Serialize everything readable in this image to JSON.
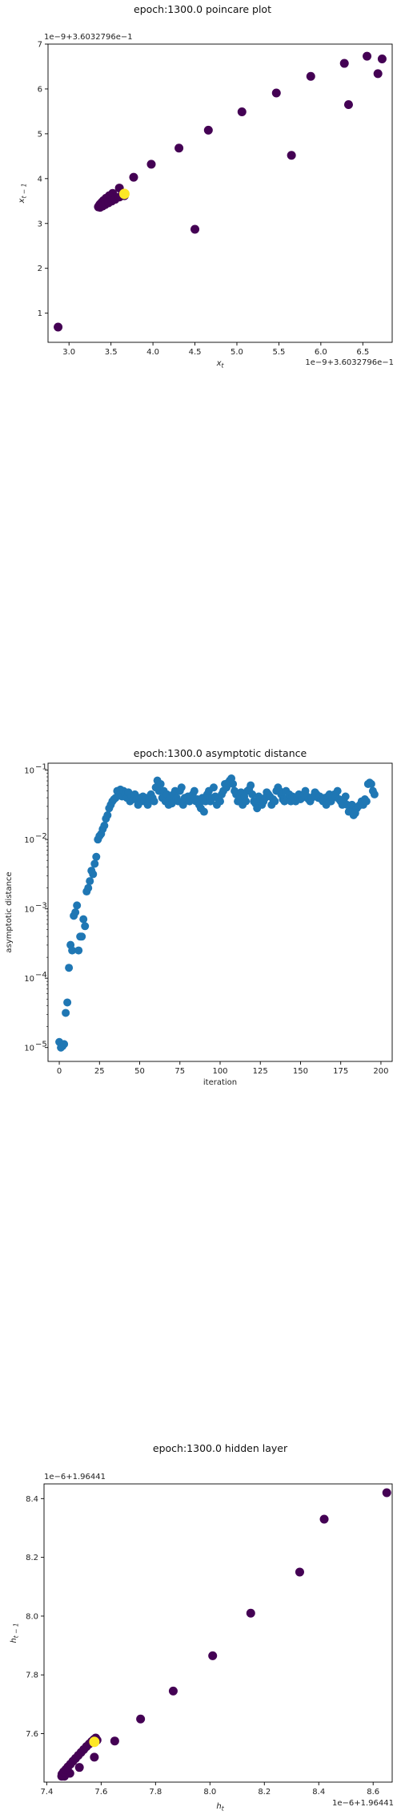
{
  "chart_data": [
    {
      "type": "scatter",
      "title": "epoch:1300.0 poincare plot",
      "xlabel": "x_t",
      "ylabel": "x_{t-1}",
      "x_offset_text": "1e−9+3.6032796e−1",
      "y_offset_text": "1e−9+3.6032796e−1",
      "xlim": [
        2.75,
        6.85
      ],
      "ylim": [
        0.35,
        7.0
      ],
      "x_ticks": [
        3.0,
        3.5,
        4.0,
        4.5,
        5.0,
        5.5,
        6.0,
        6.5
      ],
      "x_tick_labels": [
        "3.0",
        "3.5",
        "4.0",
        "4.5",
        "5.0",
        "5.5",
        "6.0",
        "6.5"
      ],
      "y_ticks": [
        1,
        2,
        3,
        4,
        5,
        6,
        7
      ],
      "y_tick_labels": [
        "1",
        "2",
        "3",
        "4",
        "5",
        "6",
        "7"
      ],
      "colors": {
        "point": "#440154",
        "highlight": "#fde725"
      },
      "points": [
        [
          2.87,
          0.69
        ],
        [
          6.55,
          6.73
        ],
        [
          6.73,
          6.67
        ],
        [
          6.28,
          6.57
        ],
        [
          6.68,
          6.34
        ],
        [
          5.88,
          6.28
        ],
        [
          6.33,
          5.65
        ],
        [
          5.47,
          5.91
        ],
        [
          5.06,
          5.49
        ],
        [
          5.65,
          4.52
        ],
        [
          4.66,
          5.08
        ],
        [
          4.31,
          4.68
        ],
        [
          4.5,
          2.87
        ],
        [
          3.98,
          4.32
        ],
        [
          3.77,
          4.03
        ],
        [
          3.6,
          3.79
        ],
        [
          3.52,
          3.67
        ],
        [
          3.48,
          3.62
        ],
        [
          3.44,
          3.56
        ],
        [
          3.41,
          3.51
        ],
        [
          3.39,
          3.47
        ],
        [
          3.37,
          3.43
        ],
        [
          3.36,
          3.4
        ],
        [
          3.35,
          3.37
        ],
        [
          3.37,
          3.36
        ],
        [
          3.4,
          3.39
        ],
        [
          3.43,
          3.42
        ],
        [
          3.47,
          3.46
        ],
        [
          3.51,
          3.5
        ],
        [
          3.55,
          3.54
        ],
        [
          3.6,
          3.59
        ],
        [
          3.64,
          3.63
        ],
        [
          3.66,
          3.62
        ]
      ],
      "highlight": [
        3.66,
        3.66
      ]
    },
    {
      "type": "scatter",
      "title": "epoch:1300.0 asymptotic distance",
      "xlabel": "iteration",
      "ylabel": "asymptotic distance",
      "y_scale": "log",
      "xlim": [
        -7,
        207
      ],
      "ylim_log10": [
        -5.2,
        -0.9
      ],
      "x_ticks": [
        0,
        25,
        50,
        75,
        100,
        125,
        150,
        175,
        200
      ],
      "x_tick_labels": [
        "0",
        "25",
        "50",
        "75",
        "100",
        "125",
        "150",
        "175",
        "200"
      ],
      "y_tick_exponents": [
        -5,
        -4,
        -3,
        -2,
        -1
      ],
      "y_tick_labels": [
        "10",
        "10",
        "10",
        "10",
        "10"
      ],
      "y_tick_sups": [
        "−5",
        "−4",
        "−3",
        "−2",
        "−1"
      ],
      "colors": {
        "point": "#1f77b4"
      },
      "log_values": [
        -4.92,
        -5.0,
        -4.98,
        -4.95,
        -4.5,
        -4.35,
        -3.85,
        -3.52,
        -3.6,
        -3.1,
        -3.05,
        -2.95,
        -3.6,
        -3.4,
        -3.4,
        -3.15,
        -3.25,
        -2.75,
        -2.7,
        -2.6,
        -2.45,
        -2.5,
        -2.35,
        -2.25,
        -2.0,
        -1.95,
        -1.92,
        -1.85,
        -1.8,
        -1.7,
        -1.65,
        -1.55,
        -1.5,
        -1.45,
        -1.42,
        -1.4,
        -1.3,
        -1.35,
        -1.28,
        -1.38,
        -1.3,
        -1.35,
        -1.4,
        -1.32,
        -1.45,
        -1.38,
        -1.42,
        -1.35,
        -1.42,
        -1.5,
        -1.4,
        -1.45,
        -1.38,
        -1.45,
        -1.4,
        -1.5,
        -1.42,
        -1.35,
        -1.4,
        -1.45,
        -1.25,
        -1.15,
        -1.3,
        -1.2,
        -1.4,
        -1.3,
        -1.45,
        -1.35,
        -1.5,
        -1.4,
        -1.48,
        -1.35,
        -1.3,
        -1.4,
        -1.45,
        -1.3,
        -1.25,
        -1.5,
        -1.4,
        -1.42,
        -1.38,
        -1.45,
        -1.4,
        -1.35,
        -1.3,
        -1.45,
        -1.42,
        -1.5,
        -1.55,
        -1.4,
        -1.6,
        -1.45,
        -1.35,
        -1.3,
        -1.45,
        -1.4,
        -1.25,
        -1.38,
        -1.5,
        -1.42,
        -1.45,
        -1.35,
        -1.3,
        -1.2,
        -1.25,
        -1.18,
        -1.15,
        -1.12,
        -1.2,
        -1.3,
        -1.35,
        -1.45,
        -1.4,
        -1.32,
        -1.5,
        -1.38,
        -1.45,
        -1.3,
        -1.28,
        -1.22,
        -1.35,
        -1.45,
        -1.48,
        -1.55,
        -1.38,
        -1.42,
        -1.5,
        -1.45,
        -1.4,
        -1.32,
        -1.35,
        -1.38,
        -1.5,
        -1.42,
        -1.45,
        -1.3,
        -1.25,
        -1.3,
        -1.35,
        -1.42,
        -1.45,
        -1.3,
        -1.4,
        -1.35,
        -1.45,
        -1.38,
        -1.4,
        -1.45,
        -1.38,
        -1.35,
        -1.42,
        -1.4,
        -1.35,
        -1.3,
        -1.38,
        -1.42,
        -1.45,
        -1.4,
        -1.38,
        -1.32,
        -1.35,
        -1.4,
        -1.38,
        -1.42,
        -1.45,
        -1.4,
        -1.5,
        -1.38,
        -1.35,
        -1.45,
        -1.4,
        -1.35,
        -1.38,
        -1.3,
        -1.42,
        -1.45,
        -1.5,
        -1.42,
        -1.38,
        -1.5,
        -1.6,
        -1.55,
        -1.5,
        -1.65,
        -1.62,
        -1.55,
        -1.52,
        -1.5,
        -1.45,
        -1.5,
        -1.42,
        -1.45,
        -1.2,
        -1.18,
        -1.2,
        -1.3,
        -1.35
      ]
    },
    {
      "type": "scatter",
      "title": "epoch:1300.0 hidden layer",
      "xlabel": "h_t",
      "ylabel": "h_{t-1}",
      "x_offset_text": "1e−6+1.96441",
      "y_offset_text": "1e−6+1.96441",
      "xlim": [
        7.39,
        8.67
      ],
      "ylim": [
        7.435,
        8.45
      ],
      "x_ticks": [
        7.4,
        7.6,
        7.8,
        8.0,
        8.2,
        8.4,
        8.6
      ],
      "x_tick_labels": [
        "7.4",
        "7.6",
        "7.8",
        "8.0",
        "8.2",
        "8.4",
        "8.6"
      ],
      "y_ticks": [
        7.6,
        7.8,
        8.0,
        8.2,
        8.4
      ],
      "y_tick_labels": [
        "7.6",
        "7.8",
        "8.0",
        "8.2",
        "8.4"
      ],
      "colors": {
        "point": "#440154",
        "highlight": "#fde725"
      },
      "points": [
        [
          8.65,
          8.42
        ],
        [
          8.42,
          8.33
        ],
        [
          8.33,
          8.15
        ],
        [
          8.15,
          8.01
        ],
        [
          8.01,
          7.865
        ],
        [
          7.865,
          7.745
        ],
        [
          7.745,
          7.65
        ],
        [
          7.65,
          7.575
        ],
        [
          7.575,
          7.52
        ],
        [
          7.52,
          7.485
        ],
        [
          7.485,
          7.465
        ],
        [
          7.465,
          7.455
        ],
        [
          7.455,
          7.455
        ],
        [
          7.456,
          7.462
        ],
        [
          7.462,
          7.47
        ],
        [
          7.47,
          7.478
        ],
        [
          7.478,
          7.487
        ],
        [
          7.487,
          7.496
        ],
        [
          7.496,
          7.506
        ],
        [
          7.506,
          7.516
        ],
        [
          7.516,
          7.526
        ],
        [
          7.526,
          7.536
        ],
        [
          7.536,
          7.546
        ],
        [
          7.546,
          7.556
        ],
        [
          7.556,
          7.565
        ],
        [
          7.565,
          7.573
        ],
        [
          7.573,
          7.58
        ],
        [
          7.58,
          7.585
        ],
        [
          7.585,
          7.578
        ]
      ],
      "highlight": [
        7.575,
        7.572
      ]
    }
  ]
}
